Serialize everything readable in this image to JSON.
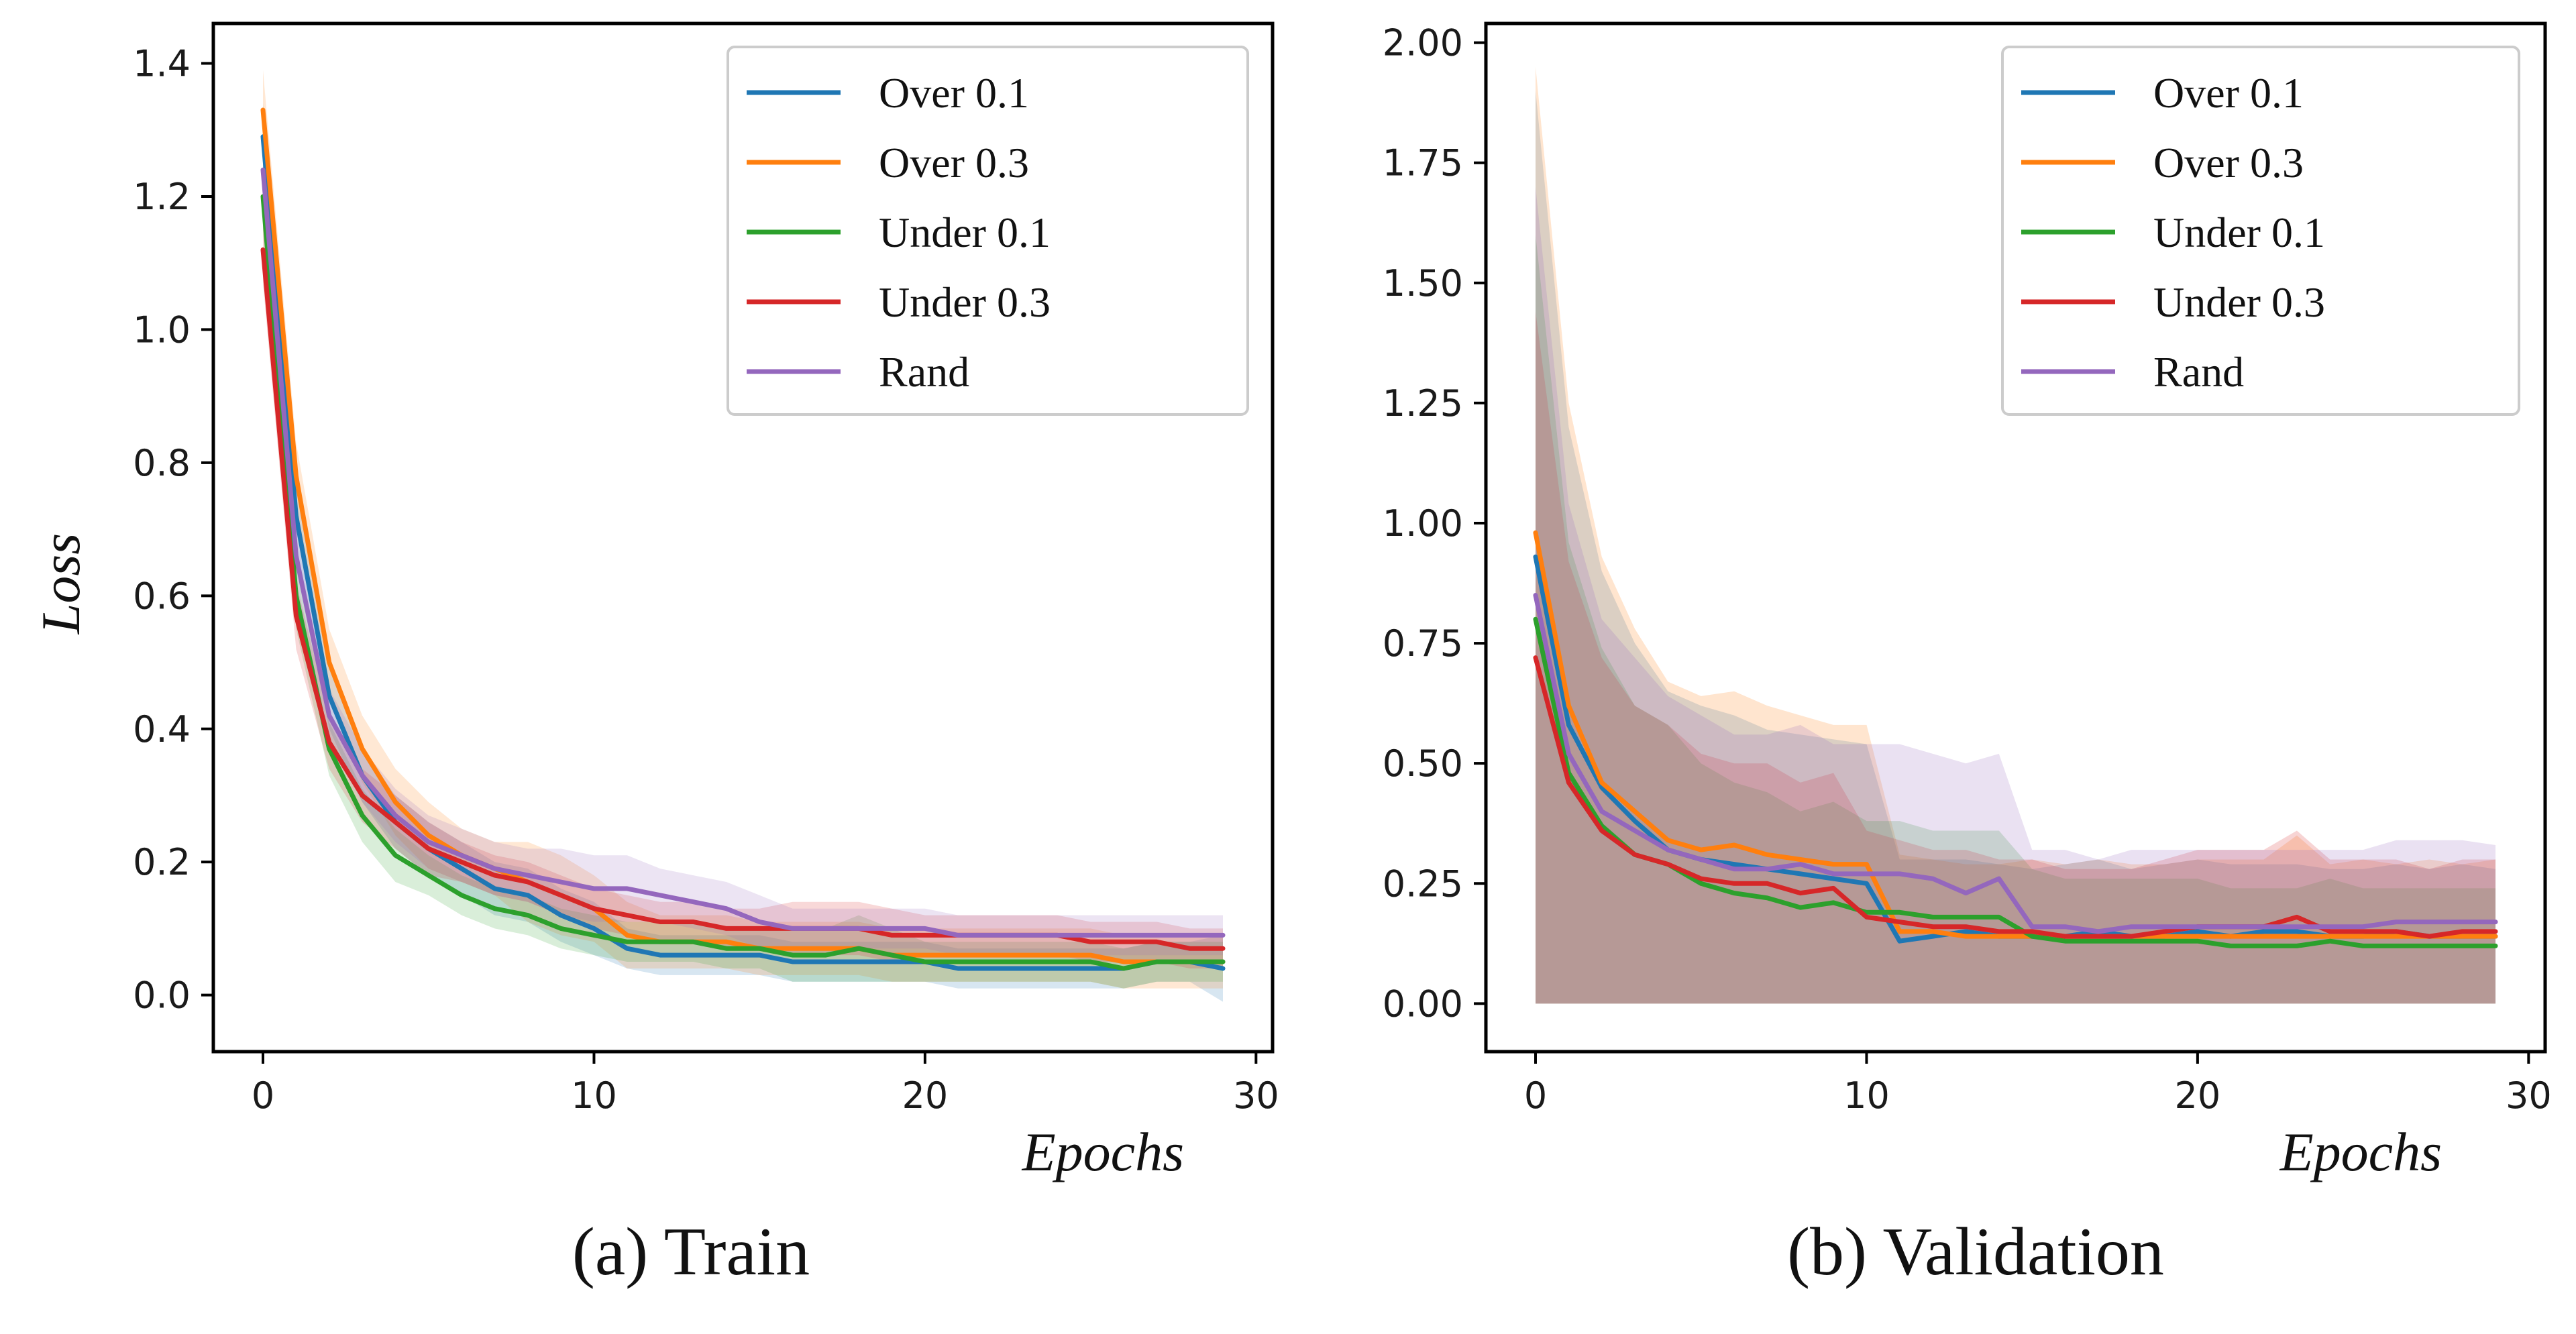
{
  "figure": {
    "panels": [
      {
        "caption": "(a) Train"
      },
      {
        "caption": "(b) Validation"
      }
    ]
  },
  "chart_data": [
    {
      "type": "line",
      "title": "",
      "caption": "(a) Train",
      "xlabel": "Epochs",
      "ylabel": "Loss",
      "xlim": [
        -1.5,
        30.5
      ],
      "ylim": [
        -0.085,
        1.46
      ],
      "xticks": [
        "0",
        "10",
        "20",
        "30"
      ],
      "xtick_values": [
        0,
        10,
        20,
        30
      ],
      "yticks": [
        "0.0",
        "0.2",
        "0.4",
        "0.6",
        "0.8",
        "1.0",
        "1.2",
        "1.4"
      ],
      "ytick_values": [
        0.0,
        0.2,
        0.4,
        0.6,
        0.8,
        1.0,
        1.2,
        1.4
      ],
      "grid": false,
      "legend_position": "top-right",
      "x": [
        0,
        1,
        2,
        3,
        4,
        5,
        6,
        7,
        8,
        9,
        10,
        11,
        12,
        13,
        14,
        15,
        16,
        17,
        18,
        19,
        20,
        21,
        22,
        23,
        24,
        25,
        26,
        27,
        28,
        29
      ],
      "series": [
        {
          "name": "Over 0.1",
          "color": "#1f77b4",
          "values": [
            1.29,
            0.72,
            0.45,
            0.33,
            0.26,
            0.22,
            0.19,
            0.16,
            0.15,
            0.12,
            0.1,
            0.07,
            0.06,
            0.06,
            0.06,
            0.06,
            0.05,
            0.05,
            0.05,
            0.05,
            0.05,
            0.04,
            0.04,
            0.04,
            0.04,
            0.04,
            0.04,
            0.05,
            0.05,
            0.04
          ],
          "band": [
            0.05,
            0.05,
            0.05,
            0.04,
            0.04,
            0.04,
            0.04,
            0.04,
            0.04,
            0.04,
            0.04,
            0.03,
            0.03,
            0.03,
            0.03,
            0.03,
            0.03,
            0.03,
            0.03,
            0.03,
            0.03,
            0.03,
            0.03,
            0.03,
            0.03,
            0.03,
            0.03,
            0.03,
            0.03,
            0.05
          ]
        },
        {
          "name": "Over 0.3",
          "color": "#ff7f0e",
          "values": [
            1.33,
            0.78,
            0.5,
            0.37,
            0.29,
            0.24,
            0.21,
            0.19,
            0.17,
            0.15,
            0.13,
            0.09,
            0.08,
            0.08,
            0.08,
            0.07,
            0.07,
            0.07,
            0.07,
            0.06,
            0.06,
            0.06,
            0.06,
            0.06,
            0.06,
            0.06,
            0.05,
            0.05,
            0.05,
            0.05
          ],
          "band": [
            0.06,
            0.05,
            0.05,
            0.05,
            0.05,
            0.05,
            0.04,
            0.04,
            0.06,
            0.06,
            0.05,
            0.05,
            0.04,
            0.04,
            0.04,
            0.04,
            0.04,
            0.04,
            0.04,
            0.04,
            0.04,
            0.04,
            0.04,
            0.04,
            0.04,
            0.04,
            0.04,
            0.04,
            0.04,
            0.04
          ]
        },
        {
          "name": "Under 0.1",
          "color": "#2ca02c",
          "values": [
            1.2,
            0.6,
            0.37,
            0.27,
            0.21,
            0.18,
            0.15,
            0.13,
            0.12,
            0.1,
            0.09,
            0.08,
            0.08,
            0.08,
            0.07,
            0.07,
            0.06,
            0.06,
            0.07,
            0.06,
            0.05,
            0.05,
            0.05,
            0.05,
            0.05,
            0.05,
            0.04,
            0.05,
            0.05,
            0.05
          ],
          "band": [
            0.05,
            0.05,
            0.04,
            0.04,
            0.04,
            0.03,
            0.03,
            0.03,
            0.03,
            0.03,
            0.03,
            0.03,
            0.03,
            0.03,
            0.03,
            0.03,
            0.04,
            0.04,
            0.05,
            0.04,
            0.03,
            0.03,
            0.03,
            0.03,
            0.03,
            0.03,
            0.03,
            0.03,
            0.03,
            0.03
          ]
        },
        {
          "name": "Under 0.3",
          "color": "#d62728",
          "values": [
            1.12,
            0.57,
            0.38,
            0.3,
            0.26,
            0.22,
            0.2,
            0.18,
            0.17,
            0.15,
            0.13,
            0.12,
            0.11,
            0.11,
            0.1,
            0.1,
            0.1,
            0.1,
            0.1,
            0.09,
            0.09,
            0.09,
            0.09,
            0.09,
            0.09,
            0.08,
            0.08,
            0.08,
            0.07,
            0.07
          ],
          "band": [
            0.05,
            0.05,
            0.04,
            0.04,
            0.04,
            0.04,
            0.03,
            0.03,
            0.03,
            0.03,
            0.03,
            0.03,
            0.03,
            0.03,
            0.03,
            0.03,
            0.04,
            0.04,
            0.04,
            0.04,
            0.03,
            0.03,
            0.03,
            0.03,
            0.03,
            0.03,
            0.03,
            0.03,
            0.03,
            0.03
          ]
        },
        {
          "name": "Rand",
          "color": "#9467bd",
          "values": [
            1.24,
            0.66,
            0.42,
            0.33,
            0.27,
            0.23,
            0.21,
            0.19,
            0.18,
            0.17,
            0.16,
            0.16,
            0.15,
            0.14,
            0.13,
            0.11,
            0.1,
            0.1,
            0.1,
            0.1,
            0.1,
            0.09,
            0.09,
            0.09,
            0.09,
            0.09,
            0.09,
            0.09,
            0.09,
            0.09
          ],
          "band": [
            0.05,
            0.05,
            0.04,
            0.04,
            0.04,
            0.04,
            0.04,
            0.04,
            0.04,
            0.05,
            0.05,
            0.05,
            0.04,
            0.04,
            0.04,
            0.04,
            0.03,
            0.03,
            0.03,
            0.03,
            0.03,
            0.03,
            0.03,
            0.03,
            0.03,
            0.03,
            0.03,
            0.03,
            0.03,
            0.03
          ]
        }
      ]
    },
    {
      "type": "line",
      "title": "",
      "caption": "(b) Validation",
      "xlabel": "Epochs",
      "ylabel": "",
      "xlim": [
        -1.5,
        30.5
      ],
      "ylim": [
        -0.1,
        2.04
      ],
      "xticks": [
        "0",
        "10",
        "20",
        "30"
      ],
      "xtick_values": [
        0,
        10,
        20,
        30
      ],
      "yticks": [
        "0.00",
        "0.25",
        "0.50",
        "0.75",
        "1.00",
        "1.25",
        "1.50",
        "1.75",
        "2.00"
      ],
      "ytick_values": [
        0.0,
        0.25,
        0.5,
        0.75,
        1.0,
        1.25,
        1.5,
        1.75,
        2.0
      ],
      "grid": false,
      "legend_position": "top-right",
      "x": [
        0,
        1,
        2,
        3,
        4,
        5,
        6,
        7,
        8,
        9,
        10,
        11,
        12,
        13,
        14,
        15,
        16,
        17,
        18,
        19,
        20,
        21,
        22,
        23,
        24,
        25,
        26,
        27,
        28,
        29
      ],
      "series": [
        {
          "name": "Over 0.1",
          "color": "#1f77b4",
          "values": [
            0.93,
            0.58,
            0.45,
            0.38,
            0.32,
            0.3,
            0.29,
            0.28,
            0.27,
            0.26,
            0.25,
            0.13,
            0.14,
            0.15,
            0.14,
            0.14,
            0.14,
            0.15,
            0.14,
            0.14,
            0.15,
            0.14,
            0.15,
            0.15,
            0.14,
            0.14,
            0.15,
            0.14,
            0.14,
            0.14
          ],
          "band_low": [
            0,
            0,
            0,
            0,
            0,
            0,
            0,
            0,
            0,
            0,
            0,
            0,
            0,
            0,
            0,
            0,
            0,
            0,
            0,
            0,
            0,
            0,
            0,
            0,
            0,
            0,
            0,
            0,
            0,
            0
          ],
          "band_high": [
            1.9,
            1.2,
            0.9,
            0.75,
            0.65,
            0.62,
            0.6,
            0.57,
            0.56,
            0.55,
            0.54,
            0.3,
            0.3,
            0.3,
            0.29,
            0.28,
            0.29,
            0.3,
            0.28,
            0.29,
            0.3,
            0.29,
            0.29,
            0.29,
            0.28,
            0.28,
            0.29,
            0.28,
            0.29,
            0.28
          ]
        },
        {
          "name": "Over 0.3",
          "color": "#ff7f0e",
          "values": [
            0.98,
            0.62,
            0.46,
            0.4,
            0.34,
            0.32,
            0.33,
            0.31,
            0.3,
            0.29,
            0.29,
            0.15,
            0.15,
            0.14,
            0.14,
            0.14,
            0.14,
            0.14,
            0.14,
            0.14,
            0.14,
            0.14,
            0.14,
            0.14,
            0.14,
            0.14,
            0.14,
            0.14,
            0.14,
            0.14
          ],
          "band_low": [
            0,
            0,
            0,
            0,
            0,
            0,
            0,
            0,
            0,
            0,
            0,
            0,
            0,
            0,
            0,
            0,
            0,
            0,
            0,
            0,
            0,
            0,
            0,
            0,
            0,
            0,
            0,
            0,
            0,
            0
          ],
          "band_high": [
            1.95,
            1.25,
            0.93,
            0.78,
            0.67,
            0.64,
            0.65,
            0.62,
            0.6,
            0.58,
            0.58,
            0.31,
            0.3,
            0.29,
            0.29,
            0.3,
            0.29,
            0.3,
            0.29,
            0.29,
            0.3,
            0.3,
            0.3,
            0.35,
            0.29,
            0.3,
            0.29,
            0.3,
            0.29,
            0.3
          ]
        },
        {
          "name": "Under 0.1",
          "color": "#2ca02c",
          "values": [
            0.8,
            0.48,
            0.37,
            0.31,
            0.29,
            0.25,
            0.23,
            0.22,
            0.2,
            0.21,
            0.19,
            0.19,
            0.18,
            0.18,
            0.18,
            0.14,
            0.13,
            0.13,
            0.13,
            0.13,
            0.13,
            0.12,
            0.12,
            0.12,
            0.13,
            0.12,
            0.12,
            0.12,
            0.12,
            0.12
          ],
          "band_low": [
            0,
            0,
            0,
            0,
            0,
            0,
            0,
            0,
            0,
            0,
            0,
            0,
            0,
            0,
            0,
            0,
            0,
            0,
            0,
            0,
            0,
            0,
            0,
            0,
            0,
            0,
            0,
            0,
            0,
            0
          ],
          "band_high": [
            1.6,
            0.96,
            0.74,
            0.62,
            0.58,
            0.5,
            0.46,
            0.44,
            0.4,
            0.42,
            0.38,
            0.38,
            0.36,
            0.36,
            0.36,
            0.28,
            0.26,
            0.26,
            0.26,
            0.26,
            0.26,
            0.24,
            0.24,
            0.24,
            0.26,
            0.24,
            0.24,
            0.24,
            0.24,
            0.24
          ]
        },
        {
          "name": "Under 0.3",
          "color": "#d62728",
          "values": [
            0.72,
            0.46,
            0.36,
            0.31,
            0.29,
            0.26,
            0.25,
            0.25,
            0.23,
            0.24,
            0.18,
            0.17,
            0.16,
            0.16,
            0.15,
            0.15,
            0.14,
            0.14,
            0.14,
            0.15,
            0.16,
            0.16,
            0.16,
            0.18,
            0.15,
            0.15,
            0.15,
            0.14,
            0.15,
            0.15
          ],
          "band_low": [
            0,
            0,
            0,
            0,
            0,
            0,
            0,
            0,
            0,
            0,
            0,
            0,
            0,
            0,
            0,
            0,
            0,
            0,
            0,
            0,
            0,
            0,
            0,
            0,
            0,
            0,
            0,
            0,
            0,
            0
          ],
          "band_high": [
            1.44,
            0.92,
            0.72,
            0.62,
            0.58,
            0.52,
            0.5,
            0.5,
            0.46,
            0.48,
            0.36,
            0.34,
            0.32,
            0.32,
            0.3,
            0.3,
            0.28,
            0.28,
            0.28,
            0.3,
            0.32,
            0.32,
            0.32,
            0.36,
            0.3,
            0.3,
            0.3,
            0.28,
            0.3,
            0.3
          ]
        },
        {
          "name": "Rand",
          "color": "#9467bd",
          "values": [
            0.85,
            0.52,
            0.4,
            0.36,
            0.32,
            0.3,
            0.28,
            0.28,
            0.29,
            0.27,
            0.27,
            0.27,
            0.26,
            0.23,
            0.26,
            0.16,
            0.16,
            0.15,
            0.16,
            0.16,
            0.16,
            0.16,
            0.16,
            0.16,
            0.16,
            0.16,
            0.17,
            0.17,
            0.17,
            0.17
          ],
          "band_low": [
            0,
            0,
            0,
            0,
            0,
            0,
            0,
            0,
            0,
            0,
            0,
            0,
            0,
            0,
            0,
            0,
            0,
            0,
            0,
            0,
            0,
            0,
            0,
            0,
            0,
            0,
            0,
            0,
            0,
            0
          ],
          "band_high": [
            1.7,
            1.04,
            0.8,
            0.72,
            0.64,
            0.6,
            0.56,
            0.56,
            0.58,
            0.54,
            0.54,
            0.54,
            0.52,
            0.5,
            0.52,
            0.32,
            0.32,
            0.3,
            0.32,
            0.32,
            0.32,
            0.32,
            0.32,
            0.32,
            0.32,
            0.32,
            0.34,
            0.34,
            0.34,
            0.33
          ]
        }
      ]
    }
  ]
}
